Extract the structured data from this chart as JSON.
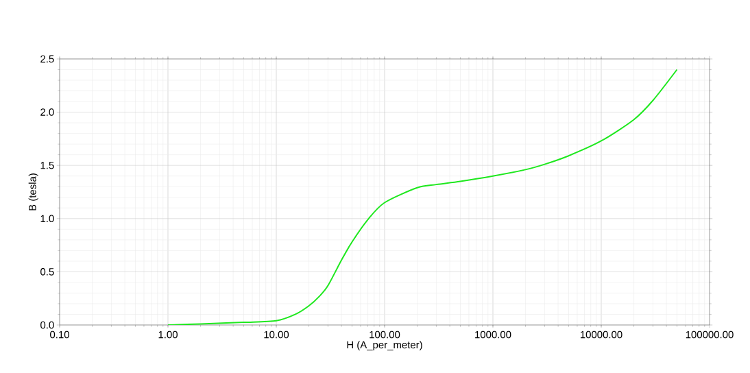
{
  "chart_data": {
    "type": "line",
    "xlabel": "H (A_per_meter)",
    "ylabel": "B (tesla)",
    "log": "x",
    "grid": true,
    "marker": "none",
    "line_style": "solid",
    "xlim": [
      0.1,
      100000
    ],
    "ylim": [
      0,
      2.5
    ],
    "xticks": [
      {
        "value": 0.1,
        "label": "0.10"
      },
      {
        "value": 1,
        "label": "1.00"
      },
      {
        "value": 10,
        "label": "10.00"
      },
      {
        "value": 100,
        "label": "100.00"
      },
      {
        "value": 1000,
        "label": "1000.00"
      },
      {
        "value": 10000,
        "label": "10000.00"
      },
      {
        "value": 100000,
        "label": "100000.00"
      }
    ],
    "yticks": [
      {
        "value": 0,
        "label": "0.0"
      },
      {
        "value": 0.5,
        "label": "0.5"
      },
      {
        "value": 1,
        "label": "1.0"
      },
      {
        "value": 1.5,
        "label": "1.5"
      },
      {
        "value": 2,
        "label": "2.0"
      },
      {
        "value": 2.5,
        "label": "2.5"
      }
    ],
    "series": [
      {
        "color": "#1ee81e",
        "x": [
          1,
          2,
          5,
          10,
          15,
          20,
          25,
          30,
          40,
          50,
          70,
          100,
          200,
          300,
          500,
          1000,
          2000,
          3000,
          5000,
          10000,
          20000,
          30000,
          50000
        ],
        "values": [
          0,
          0.01,
          0.025,
          0.04,
          0.1,
          0.18,
          0.27,
          0.37,
          0.61,
          0.78,
          0.99,
          1.15,
          1.29,
          1.32,
          1.35,
          1.4,
          1.46,
          1.51,
          1.59,
          1.73,
          1.93,
          2.11,
          2.4
        ]
      }
    ]
  }
}
